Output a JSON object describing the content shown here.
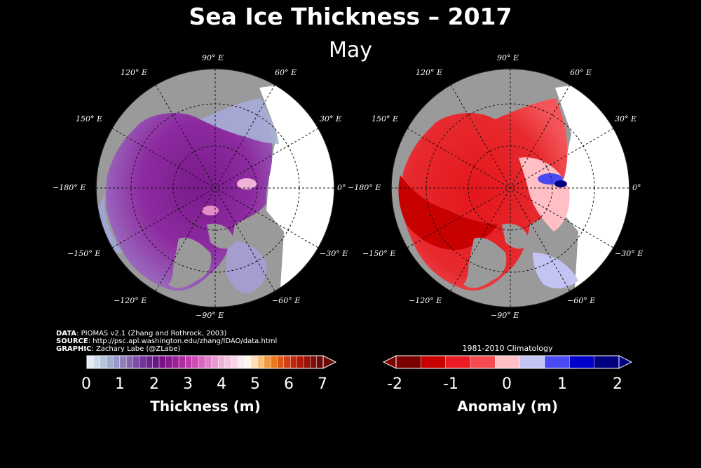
{
  "header": {
    "title": "Sea Ice Thickness – 2017",
    "subtitle": "May"
  },
  "left_map": {
    "labels": [
      "90° E",
      "120° E",
      "60° E",
      "150° E",
      "30° E",
      "−180° E",
      "0°",
      "−150° E",
      "−30° E",
      "−120° E",
      "−60° E",
      "−90° E"
    ]
  },
  "right_map": {
    "labels": [
      "90° E",
      "120° E",
      "60° E",
      "150° E",
      "30° E",
      "−180° E",
      "0°",
      "−150° E",
      "−30° E",
      "−120° E",
      "−60° E",
      "−90° E"
    ]
  },
  "credits": {
    "data_key": "DATA",
    "data_val": ": PIOMAS v2.1 (Zhang and Rothrock, 2003)",
    "source_key": "SOURCE",
    "source_val": ": http://psc.apl.washington.edu/zhang/IDAO/data.html",
    "graphic_key": "GRAPHIC",
    "graphic_val": ": Zachary Labe (@ZLabe)"
  },
  "colorbar_thickness": {
    "label": "Thickness (m)",
    "ticks": [
      "0",
      "1",
      "2",
      "3",
      "4",
      "5",
      "6",
      "7"
    ],
    "colors": [
      "#e4eaf2",
      "#cdd8e8",
      "#b6c4dc",
      "#a2aed0",
      "#9898c8",
      "#8e7fbc",
      "#8566b0",
      "#7d4da4",
      "#74339a",
      "#6b2190",
      "#6a1486",
      "#7a1186",
      "#8a1790",
      "#9c209a",
      "#ae2ba2",
      "#bf3aab",
      "#cf4db5",
      "#da65bf",
      "#e27fc9",
      "#e999d2",
      "#efb0d9",
      "#f3c4e0",
      "#f6d6e8",
      "#fbebf2",
      "#fff5e8",
      "#fde0b8",
      "#f8c07c",
      "#f2993f",
      "#e9781f",
      "#dd5615",
      "#cf3d12",
      "#c0280e",
      "#ad1a0b",
      "#971208",
      "#800c06",
      "#6a0804"
    ]
  },
  "colorbar_anomaly": {
    "caption": "1981-2010 Climatology",
    "label": "Anomaly (m)",
    "ticks": [
      "-2",
      "-1",
      "0",
      "1",
      "2"
    ],
    "colors": [
      "#7a0000",
      "#c70000",
      "#ec1c24",
      "#f44a50",
      "#ffbfc5",
      "#c4c4f4",
      "#4a4af4",
      "#0000cc",
      "#000080"
    ]
  }
}
